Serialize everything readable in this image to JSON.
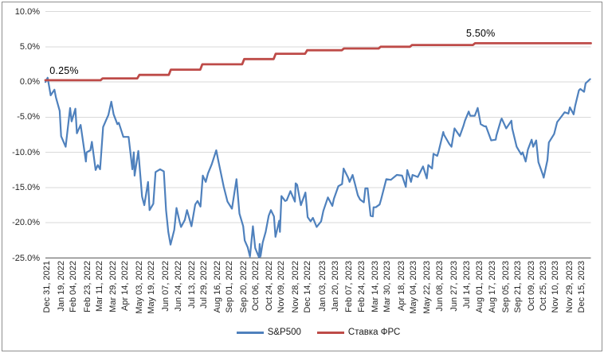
{
  "chart_data": {
    "type": "line",
    "title": "",
    "legend": {
      "position": "bottom"
    },
    "x_axis": {
      "start_date": "2021-12-31",
      "end_date": "2023-12-29",
      "ticks": [
        {
          "label": "Dec 31, 2021",
          "date": "2021-12-31"
        },
        {
          "label": "Jan 19, 2022",
          "date": "2022-01-19"
        },
        {
          "label": "Feb 04, 2022",
          "date": "2022-02-04"
        },
        {
          "label": "Feb 23, 2022",
          "date": "2022-02-23"
        },
        {
          "label": "Mar 11, 2022",
          "date": "2022-03-11"
        },
        {
          "label": "Mar 29, 2022",
          "date": "2022-03-29"
        },
        {
          "label": "Apr 14, 2022",
          "date": "2022-04-14"
        },
        {
          "label": "May 03, 2022",
          "date": "2022-05-03"
        },
        {
          "label": "May 19, 2022",
          "date": "2022-05-19"
        },
        {
          "label": "Jun 07, 2022",
          "date": "2022-06-07"
        },
        {
          "label": "Jun 24, 2022",
          "date": "2022-06-24"
        },
        {
          "label": "Jul 13, 2022",
          "date": "2022-07-13"
        },
        {
          "label": "Jul 29, 2022",
          "date": "2022-07-29"
        },
        {
          "label": "Aug 16, 2022",
          "date": "2022-08-16"
        },
        {
          "label": "Sep 01, 2022",
          "date": "2022-09-01"
        },
        {
          "label": "Sep 20, 2022",
          "date": "2022-09-20"
        },
        {
          "label": "Oct 06, 2022",
          "date": "2022-10-06"
        },
        {
          "label": "Oct 24, 2022",
          "date": "2022-10-24"
        },
        {
          "label": "Nov 09, 2022",
          "date": "2022-11-09"
        },
        {
          "label": "Nov 28, 2022",
          "date": "2022-11-28"
        },
        {
          "label": "Dec 14, 2022",
          "date": "2022-12-14"
        },
        {
          "label": "Jan 03, 2023",
          "date": "2023-01-03"
        },
        {
          "label": "Jan 20, 2023",
          "date": "2023-01-20"
        },
        {
          "label": "Feb 07, 2023",
          "date": "2023-02-07"
        },
        {
          "label": "Feb 24, 2023",
          "date": "2023-02-24"
        },
        {
          "label": "Mar 14, 2023",
          "date": "2023-03-14"
        },
        {
          "label": "Mar 30, 2023",
          "date": "2023-03-30"
        },
        {
          "label": "Apr 18, 2023",
          "date": "2023-04-18"
        },
        {
          "label": "May 04, 2023",
          "date": "2023-05-04"
        },
        {
          "label": "May 22, 2023",
          "date": "2023-05-22"
        },
        {
          "label": "Jun 08, 2023",
          "date": "2023-06-08"
        },
        {
          "label": "Jun 27, 2023",
          "date": "2023-06-27"
        },
        {
          "label": "Jul 14, 2023",
          "date": "2023-07-14"
        },
        {
          "label": "Aug 01, 2023",
          "date": "2023-08-01"
        },
        {
          "label": "Aug 17, 2023",
          "date": "2023-08-17"
        },
        {
          "label": "Sep 05, 2023",
          "date": "2023-09-05"
        },
        {
          "label": "Sep 21, 2023",
          "date": "2023-09-21"
        },
        {
          "label": "Oct 09, 2023",
          "date": "2023-10-09"
        },
        {
          "label": "Oct 25, 2023",
          "date": "2023-10-25"
        },
        {
          "label": "Nov 10, 2023",
          "date": "2023-11-10"
        },
        {
          "label": "Nov 29, 2023",
          "date": "2023-11-29"
        },
        {
          "label": "Dec 15, 2023",
          "date": "2023-12-15"
        }
      ]
    },
    "y_axis": {
      "min": -25,
      "max": 10,
      "step": 5,
      "unit": "%",
      "tick_values": [
        10,
        5,
        0,
        -5,
        -10,
        -15,
        -20,
        -25
      ],
      "tick_labels": [
        "10.0%",
        "5.0%",
        "0.0%",
        "-5.0%",
        "-10.0%",
        "-15.0%",
        "-20.0%",
        "-25.0%"
      ]
    },
    "annotations": [
      {
        "text": "0.25%",
        "date": "2022-01-25",
        "pct": 1.6
      },
      {
        "text": "5.50%",
        "date": "2023-08-04",
        "pct": 6.9
      }
    ],
    "series": [
      {
        "name": "S&P500",
        "color": "#4F81BD",
        "style": "line",
        "points": [
          [
            "2021-12-31",
            0
          ],
          [
            "2022-01-03",
            0.6
          ],
          [
            "2022-01-07",
            -1.9
          ],
          [
            "2022-01-12",
            -1.1
          ],
          [
            "2022-01-14",
            -2.2
          ],
          [
            "2022-01-19",
            -4.1
          ],
          [
            "2022-01-21",
            -7.7
          ],
          [
            "2022-01-27",
            -9.2
          ],
          [
            "2022-02-02",
            -3.7
          ],
          [
            "2022-02-04",
            -5.6
          ],
          [
            "2022-02-09",
            -3.8
          ],
          [
            "2022-02-11",
            -7.3
          ],
          [
            "2022-02-16",
            -6.1
          ],
          [
            "2022-02-23",
            -11.3
          ],
          [
            "2022-02-24",
            -10.0
          ],
          [
            "2022-03-01",
            -9.7
          ],
          [
            "2022-03-03",
            -8.5
          ],
          [
            "2022-03-08",
            -12.5
          ],
          [
            "2022-03-11",
            -11.8
          ],
          [
            "2022-03-14",
            -12.4
          ],
          [
            "2022-03-18",
            -6.4
          ],
          [
            "2022-03-22",
            -5.4
          ],
          [
            "2022-03-25",
            -4.7
          ],
          [
            "2022-03-29",
            -2.8
          ],
          [
            "2022-04-01",
            -4.6
          ],
          [
            "2022-04-06",
            -6.0
          ],
          [
            "2022-04-08",
            -5.8
          ],
          [
            "2022-04-14",
            -7.8
          ],
          [
            "2022-04-21",
            -7.8
          ],
          [
            "2022-04-26",
            -12.4
          ],
          [
            "2022-04-28",
            -10.0
          ],
          [
            "2022-04-29",
            -13.3
          ],
          [
            "2022-05-04",
            -9.8
          ],
          [
            "2022-05-09",
            -16.3
          ],
          [
            "2022-05-12",
            -17.5
          ],
          [
            "2022-05-17",
            -14.2
          ],
          [
            "2022-05-19",
            -18.2
          ],
          [
            "2022-05-24",
            -17.3
          ],
          [
            "2022-05-27",
            -12.8
          ],
          [
            "2022-06-02",
            -12.4
          ],
          [
            "2022-06-07",
            -12.7
          ],
          [
            "2022-06-10",
            -18.2
          ],
          [
            "2022-06-13",
            -21.3
          ],
          [
            "2022-06-16",
            -23.1
          ],
          [
            "2022-06-21",
            -21.0
          ],
          [
            "2022-06-24",
            -17.9
          ],
          [
            "2022-06-28",
            -19.8
          ],
          [
            "2022-06-30",
            -20.6
          ],
          [
            "2022-07-05",
            -19.6
          ],
          [
            "2022-07-08",
            -18.2
          ],
          [
            "2022-07-14",
            -20.5
          ],
          [
            "2022-07-19",
            -17.4
          ],
          [
            "2022-07-22",
            -16.9
          ],
          [
            "2022-07-26",
            -17.7
          ],
          [
            "2022-07-29",
            -13.3
          ],
          [
            "2022-08-02",
            -14.2
          ],
          [
            "2022-08-05",
            -13.0
          ],
          [
            "2022-08-10",
            -11.7
          ],
          [
            "2022-08-16",
            -9.7
          ],
          [
            "2022-08-19",
            -11.3
          ],
          [
            "2022-08-26",
            -14.9
          ],
          [
            "2022-08-31",
            -17.0
          ],
          [
            "2022-09-06",
            -18.0
          ],
          [
            "2022-09-12",
            -13.8
          ],
          [
            "2022-09-16",
            -18.7
          ],
          [
            "2022-09-21",
            -20.5
          ],
          [
            "2022-09-23",
            -22.5
          ],
          [
            "2022-09-27",
            -23.5
          ],
          [
            "2022-09-30",
            -24.8
          ],
          [
            "2022-10-04",
            -20.5
          ],
          [
            "2022-10-07",
            -23.6
          ],
          [
            "2022-10-12",
            -24.9
          ],
          [
            "2022-10-13",
            -23.0
          ],
          [
            "2022-10-14",
            -24.8
          ],
          [
            "2022-10-17",
            -22.8
          ],
          [
            "2022-10-21",
            -21.3
          ],
          [
            "2022-10-25",
            -19.0
          ],
          [
            "2022-10-28",
            -18.2
          ],
          [
            "2022-11-01",
            -19.1
          ],
          [
            "2022-11-03",
            -22.0
          ],
          [
            "2022-11-08",
            -19.7
          ],
          [
            "2022-11-09",
            -21.3
          ],
          [
            "2022-11-11",
            -16.2
          ],
          [
            "2022-11-16",
            -16.9
          ],
          [
            "2022-11-18",
            -16.8
          ],
          [
            "2022-11-23",
            -15.5
          ],
          [
            "2022-11-29",
            -17.0
          ],
          [
            "2022-11-30",
            -14.4
          ],
          [
            "2022-12-02",
            -14.6
          ],
          [
            "2022-12-07",
            -17.5
          ],
          [
            "2022-12-13",
            -15.7
          ],
          [
            "2022-12-16",
            -19.2
          ],
          [
            "2022-12-20",
            -19.8
          ],
          [
            "2022-12-23",
            -19.3
          ],
          [
            "2022-12-28",
            -20.6
          ],
          [
            "2023-01-03",
            -19.8
          ],
          [
            "2023-01-06",
            -18.3
          ],
          [
            "2023-01-12",
            -16.4
          ],
          [
            "2023-01-18",
            -17.6
          ],
          [
            "2023-01-20",
            -16.6
          ],
          [
            "2023-01-26",
            -14.8
          ],
          [
            "2023-01-31",
            -14.5
          ],
          [
            "2023-02-02",
            -12.3
          ],
          [
            "2023-02-08",
            -13.6
          ],
          [
            "2023-02-10",
            -14.2
          ],
          [
            "2023-02-14",
            -13.2
          ],
          [
            "2023-02-17",
            -14.4
          ],
          [
            "2023-02-21",
            -16.1
          ],
          [
            "2023-02-24",
            -16.7
          ],
          [
            "2023-03-01",
            -17.1
          ],
          [
            "2023-03-03",
            -15.1
          ],
          [
            "2023-03-06",
            -15.1
          ],
          [
            "2023-03-10",
            -19.0
          ],
          [
            "2023-03-13",
            -19.1
          ],
          [
            "2023-03-14",
            -17.8
          ],
          [
            "2023-03-17",
            -17.8
          ],
          [
            "2023-03-22",
            -17.4
          ],
          [
            "2023-03-24",
            -16.7
          ],
          [
            "2023-03-31",
            -13.8
          ],
          [
            "2023-04-06",
            -13.9
          ],
          [
            "2023-04-14",
            -13.2
          ],
          [
            "2023-04-21",
            -13.3
          ],
          [
            "2023-04-26",
            -14.9
          ],
          [
            "2023-04-28",
            -12.5
          ],
          [
            "2023-05-03",
            -14.2
          ],
          [
            "2023-05-05",
            -13.2
          ],
          [
            "2023-05-12",
            -13.5
          ],
          [
            "2023-05-19",
            -12.0
          ],
          [
            "2023-05-24",
            -13.7
          ],
          [
            "2023-05-26",
            -11.8
          ],
          [
            "2023-05-31",
            -12.3
          ],
          [
            "2023-06-02",
            -10.2
          ],
          [
            "2023-06-07",
            -10.5
          ],
          [
            "2023-06-09",
            -9.8
          ],
          [
            "2023-06-15",
            -7.1
          ],
          [
            "2023-06-16",
            -7.5
          ],
          [
            "2023-06-23",
            -8.8
          ],
          [
            "2023-06-26",
            -9.2
          ],
          [
            "2023-06-30",
            -6.6
          ],
          [
            "2023-07-07",
            -7.7
          ],
          [
            "2023-07-12",
            -6.2
          ],
          [
            "2023-07-14",
            -5.5
          ],
          [
            "2023-07-19",
            -4.2
          ],
          [
            "2023-07-21",
            -4.8
          ],
          [
            "2023-07-27",
            -4.8
          ],
          [
            "2023-07-31",
            -3.7
          ],
          [
            "2023-08-04",
            -6.0
          ],
          [
            "2023-08-09",
            -6.3
          ],
          [
            "2023-08-11",
            -6.3
          ],
          [
            "2023-08-18",
            -8.3
          ],
          [
            "2023-08-24",
            -8.2
          ],
          [
            "2023-08-25",
            -7.6
          ],
          [
            "2023-08-31",
            -5.4
          ],
          [
            "2023-09-01",
            -5.2
          ],
          [
            "2023-09-07",
            -6.6
          ],
          [
            "2023-09-14",
            -5.5
          ],
          [
            "2023-09-15",
            -6.6
          ],
          [
            "2023-09-21",
            -9.2
          ],
          [
            "2023-09-22",
            -9.4
          ],
          [
            "2023-09-27",
            -10.3
          ],
          [
            "2023-09-29",
            -10.0
          ],
          [
            "2023-10-03",
            -11.3
          ],
          [
            "2023-10-06",
            -9.6
          ],
          [
            "2023-10-11",
            -8.2
          ],
          [
            "2023-10-13",
            -9.2
          ],
          [
            "2023-10-17",
            -8.3
          ],
          [
            "2023-10-20",
            -11.4
          ],
          [
            "2023-10-26",
            -13.2
          ],
          [
            "2023-10-27",
            -13.6
          ],
          [
            "2023-11-01",
            -11.1
          ],
          [
            "2023-11-03",
            -8.6
          ],
          [
            "2023-11-10",
            -7.4
          ],
          [
            "2023-11-14",
            -5.7
          ],
          [
            "2023-11-17",
            -5.3
          ],
          [
            "2023-11-24",
            -4.3
          ],
          [
            "2023-11-29",
            -4.5
          ],
          [
            "2023-12-01",
            -3.6
          ],
          [
            "2023-12-06",
            -4.6
          ],
          [
            "2023-12-08",
            -3.4
          ],
          [
            "2023-12-13",
            -1.2
          ],
          [
            "2023-12-15",
            -1.0
          ],
          [
            "2023-12-20",
            -1.4
          ],
          [
            "2023-12-22",
            -0.2
          ],
          [
            "2023-12-28",
            0.4
          ]
        ]
      },
      {
        "name": "Ставка ФРС",
        "color": "#BE4B48",
        "style": "step",
        "points": [
          [
            "2021-12-31",
            0.25
          ],
          [
            "2022-03-16",
            0.5
          ],
          [
            "2022-05-04",
            1.0
          ],
          [
            "2022-06-15",
            1.75
          ],
          [
            "2022-07-27",
            2.5
          ],
          [
            "2022-09-21",
            3.25
          ],
          [
            "2022-11-02",
            4.0
          ],
          [
            "2022-12-14",
            4.5
          ],
          [
            "2023-02-01",
            4.75
          ],
          [
            "2023-03-22",
            5.0
          ],
          [
            "2023-05-03",
            5.25
          ],
          [
            "2023-07-26",
            5.5
          ],
          [
            "2023-12-29",
            5.5
          ]
        ]
      }
    ]
  },
  "colors": {
    "background": "#FFFFFF",
    "gridline": "#D9D9D9",
    "axis_line": "#595959",
    "label_text": "#262626",
    "annotation_text": "#000000",
    "border": "#8E8E8E"
  }
}
